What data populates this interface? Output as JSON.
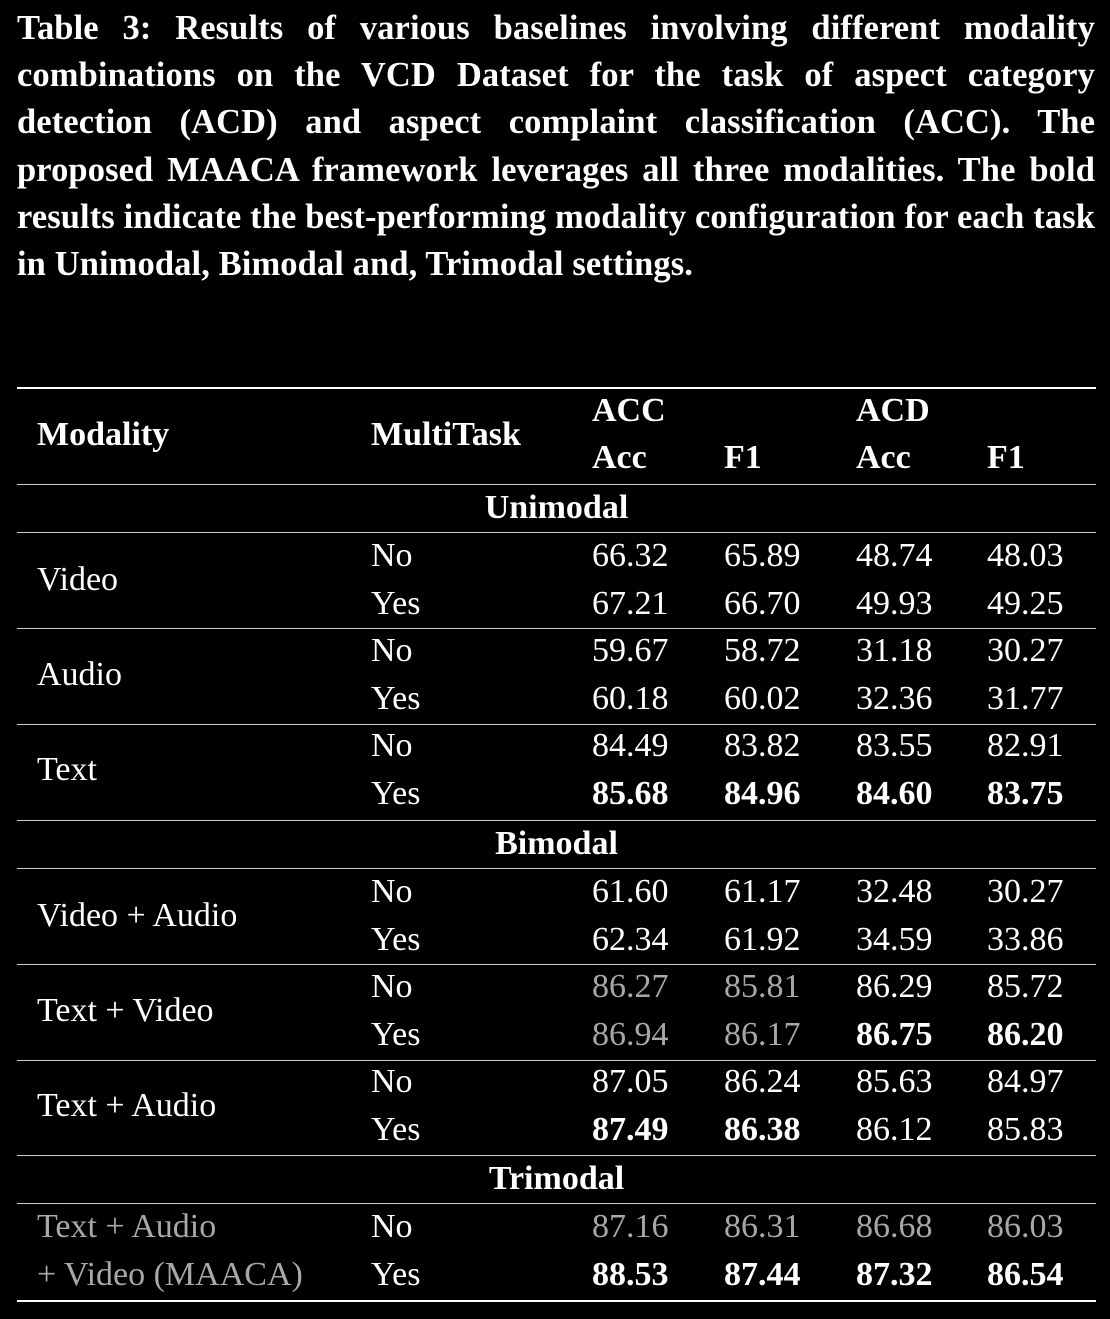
{
  "caption": "Table 3: Results of various baselines involving different modality combinations on the VCD Dataset for the task of aspect category detection (ACD) and aspect complaint classification (ACC). The proposed MAACA framework leverages all three modalities. The bold results indicate the best-performing modality configuration for each task in Unimodal, Bimodal and, Trimodal settings.",
  "header": {
    "modality": "Modality",
    "multitask": "MultiTask",
    "acc_group": "ACC",
    "acd_group": "ACD",
    "acc_acc": "Acc",
    "acc_f1": "F1",
    "acd_acc": "Acc",
    "acd_f1": "F1"
  },
  "groups": [
    {
      "title": "Unimodal",
      "rows": [
        {
          "modality": "Video",
          "multitask": "No",
          "values": [
            "66.32",
            "65.89",
            "48.74",
            "48.03"
          ],
          "bold": [
            false,
            false,
            false,
            false
          ],
          "gray": [
            false,
            false,
            false,
            false
          ]
        },
        {
          "modality": "",
          "multitask": "Yes",
          "values": [
            "67.21",
            "66.70",
            "49.93",
            "49.25"
          ],
          "bold": [
            false,
            false,
            false,
            false
          ],
          "gray": [
            false,
            false,
            false,
            false
          ]
        },
        {
          "modality": "Audio",
          "multitask": "No",
          "values": [
            "59.67",
            "58.72",
            "31.18",
            "30.27"
          ],
          "bold": [
            false,
            false,
            false,
            false
          ],
          "gray": [
            false,
            false,
            false,
            false
          ]
        },
        {
          "modality": "",
          "multitask": "Yes",
          "values": [
            "60.18",
            "60.02",
            "32.36",
            "31.77"
          ],
          "bold": [
            false,
            false,
            false,
            false
          ],
          "gray": [
            false,
            false,
            false,
            false
          ]
        },
        {
          "modality": "Text",
          "multitask": "No",
          "values": [
            "84.49",
            "83.82",
            "83.55",
            "82.91"
          ],
          "bold": [
            false,
            false,
            false,
            false
          ],
          "gray": [
            false,
            false,
            false,
            false
          ]
        },
        {
          "modality": "",
          "multitask": "Yes",
          "values": [
            "85.68",
            "84.96",
            "84.60",
            "83.75"
          ],
          "bold": [
            true,
            true,
            true,
            true
          ],
          "gray": [
            false,
            false,
            false,
            false
          ]
        }
      ]
    },
    {
      "title": "Bimodal",
      "rows": [
        {
          "modality": "Video + Audio",
          "multitask": "No",
          "values": [
            "61.60",
            "61.17",
            "32.48",
            "30.27"
          ],
          "bold": [
            false,
            false,
            false,
            false
          ],
          "gray": [
            false,
            false,
            false,
            false
          ]
        },
        {
          "modality": "",
          "multitask": "Yes",
          "values": [
            "62.34",
            "61.92",
            "34.59",
            "33.86"
          ],
          "bold": [
            false,
            false,
            false,
            false
          ],
          "gray": [
            false,
            false,
            false,
            false
          ]
        },
        {
          "modality": "Text + Video",
          "multitask": "No",
          "values": [
            "86.27",
            "85.81",
            "86.29",
            "85.72"
          ],
          "bold": [
            false,
            false,
            false,
            false
          ],
          "gray": [
            true,
            true,
            false,
            false
          ]
        },
        {
          "modality": "",
          "multitask": "Yes",
          "values": [
            "86.94",
            "86.17",
            "86.75",
            "86.20"
          ],
          "bold": [
            false,
            false,
            true,
            true
          ],
          "gray": [
            true,
            true,
            false,
            false
          ]
        },
        {
          "modality": "Text + Audio",
          "multitask": "No",
          "values": [
            "87.05",
            "86.24",
            "85.63",
            "84.97"
          ],
          "bold": [
            false,
            false,
            false,
            false
          ],
          "gray": [
            false,
            false,
            false,
            false
          ]
        },
        {
          "modality": "",
          "multitask": "Yes",
          "values": [
            "87.49",
            "86.38",
            "86.12",
            "85.83"
          ],
          "bold": [
            true,
            true,
            false,
            false
          ],
          "gray": [
            false,
            false,
            false,
            false
          ]
        }
      ]
    },
    {
      "title": "Trimodal",
      "rows": [
        {
          "modality": "Text + Audio",
          "multitask": "No",
          "values": [
            "87.16",
            "86.31",
            "86.68",
            "86.03"
          ],
          "bold": [
            false,
            false,
            false,
            false
          ],
          "gray": [
            true,
            true,
            true,
            true
          ]
        },
        {
          "modality": "+ Video (MAACA)",
          "multitask": "Yes",
          "values": [
            "88.53",
            "87.44",
            "87.32",
            "86.54"
          ],
          "bold": [
            true,
            true,
            true,
            true
          ],
          "gray": [
            true,
            true,
            true,
            true
          ]
        }
      ]
    }
  ],
  "colors": {
    "background": "#000000",
    "text": "#ffffff",
    "muted": "#a8a8a8"
  }
}
